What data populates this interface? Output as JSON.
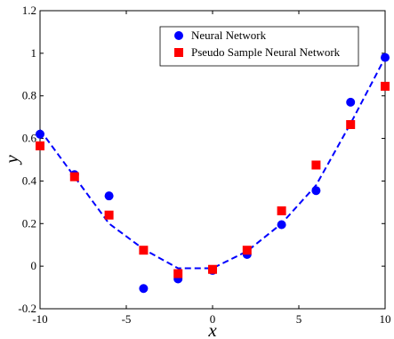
{
  "chart_data": {
    "type": "scatter",
    "xlabel": "x",
    "ylabel": "y",
    "xlim": [
      -10,
      10
    ],
    "ylim": [
      -0.2,
      1.2
    ],
    "x_ticks": [
      "-10",
      "-5",
      "0",
      "5",
      "10"
    ],
    "y_ticks": [
      "-0.2",
      "0",
      "0.2",
      "0.4",
      "0.6",
      "0.8",
      "1",
      "1.2"
    ],
    "grid": false,
    "legend_position": "top-right",
    "series": [
      {
        "name": "Neural Network",
        "marker": "circle",
        "color": "#0000ff",
        "x": [
          -10,
          -8,
          -6,
          -4,
          -2,
          0,
          2,
          4,
          6,
          8,
          10
        ],
        "y": [
          0.62,
          0.43,
          0.33,
          -0.105,
          -0.06,
          -0.02,
          0.055,
          0.195,
          0.355,
          0.77,
          0.98
        ]
      },
      {
        "name": "Pseudo Sample Neural Network",
        "marker": "square",
        "color": "#ff0000",
        "x": [
          -10,
          -8,
          -6,
          -4,
          -2,
          0,
          2,
          4,
          6,
          8,
          10
        ],
        "y": [
          0.565,
          0.42,
          0.24,
          0.075,
          -0.035,
          -0.015,
          0.075,
          0.26,
          0.475,
          0.665,
          0.845
        ]
      },
      {
        "line": "dashed",
        "color": "#0000ff",
        "x": [
          -10,
          -8,
          -6,
          -4,
          -2,
          0,
          2,
          4,
          6,
          8,
          10
        ],
        "y": [
          0.64,
          0.42,
          0.2,
          0.08,
          -0.01,
          -0.01,
          0.07,
          0.2,
          0.38,
          0.67,
          0.98
        ]
      }
    ]
  }
}
